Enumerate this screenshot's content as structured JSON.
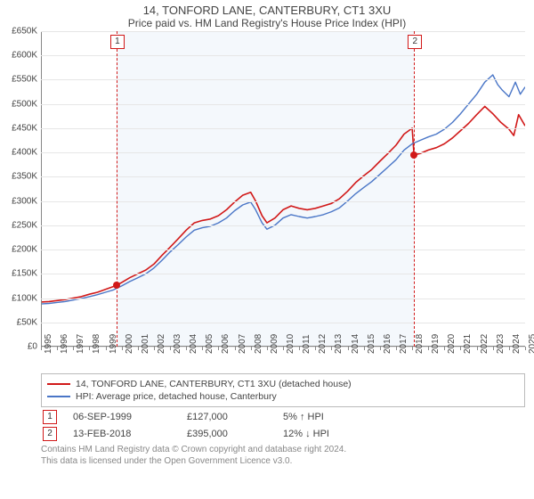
{
  "title": "14, TONFORD LANE, CANTERBURY, CT1 3XU",
  "subtitle": "Price paid vs. HM Land Registry's House Price Index (HPI)",
  "chart": {
    "type": "line",
    "background_color": "#ffffff",
    "shade_color": "#f4f8fc",
    "grid_color": "#e6e6e6",
    "axis_color": "#888888",
    "label_fontsize": 10,
    "x_min": 1995,
    "x_max": 2025,
    "x_ticks": [
      1995,
      1996,
      1997,
      1998,
      1999,
      2000,
      2001,
      2002,
      2003,
      2004,
      2005,
      2006,
      2007,
      2008,
      2009,
      2010,
      2011,
      2012,
      2013,
      2014,
      2015,
      2016,
      2017,
      2018,
      2019,
      2020,
      2021,
      2022,
      2023,
      2024,
      2025
    ],
    "y_min": 0,
    "y_max": 650000,
    "y_step": 50000,
    "y_labels": [
      "£0",
      "£50K",
      "£100K",
      "£150K",
      "£200K",
      "£250K",
      "£300K",
      "£350K",
      "£400K",
      "£450K",
      "£500K",
      "£550K",
      "£600K",
      "£650K"
    ],
    "shade_from_x": 1999.68,
    "shade_to_x": 2018.12,
    "series": [
      {
        "name": "property",
        "label": "14, TONFORD LANE, CANTERBURY, CT1 3XU (detached house)",
        "color": "#d11919",
        "line_width": 1.6,
        "points": [
          [
            1995.0,
            92000
          ],
          [
            1995.5,
            93000
          ],
          [
            1996.0,
            95000
          ],
          [
            1996.5,
            97000
          ],
          [
            1997.0,
            100000
          ],
          [
            1997.5,
            103000
          ],
          [
            1998.0,
            108000
          ],
          [
            1998.5,
            112000
          ],
          [
            1999.0,
            118000
          ],
          [
            1999.5,
            124000
          ],
          [
            2000.0,
            132000
          ],
          [
            2000.5,
            142000
          ],
          [
            2001.0,
            150000
          ],
          [
            2001.5,
            158000
          ],
          [
            2002.0,
            170000
          ],
          [
            2002.5,
            188000
          ],
          [
            2003.0,
            205000
          ],
          [
            2003.5,
            222000
          ],
          [
            2004.0,
            240000
          ],
          [
            2004.5,
            255000
          ],
          [
            2005.0,
            260000
          ],
          [
            2005.5,
            263000
          ],
          [
            2006.0,
            270000
          ],
          [
            2006.5,
            282000
          ],
          [
            2007.0,
            298000
          ],
          [
            2007.5,
            312000
          ],
          [
            2008.0,
            318000
          ],
          [
            2008.3,
            300000
          ],
          [
            2008.7,
            270000
          ],
          [
            2009.0,
            255000
          ],
          [
            2009.5,
            265000
          ],
          [
            2010.0,
            282000
          ],
          [
            2010.5,
            290000
          ],
          [
            2011.0,
            285000
          ],
          [
            2011.5,
            282000
          ],
          [
            2012.0,
            285000
          ],
          [
            2012.5,
            290000
          ],
          [
            2013.0,
            295000
          ],
          [
            2013.5,
            305000
          ],
          [
            2014.0,
            320000
          ],
          [
            2014.5,
            338000
          ],
          [
            2015.0,
            352000
          ],
          [
            2015.5,
            365000
          ],
          [
            2016.0,
            382000
          ],
          [
            2016.5,
            398000
          ],
          [
            2017.0,
            415000
          ],
          [
            2017.5,
            438000
          ],
          [
            2018.0,
            450000
          ],
          [
            2018.12,
            395000
          ],
          [
            2018.5,
            398000
          ],
          [
            2019.0,
            405000
          ],
          [
            2019.5,
            410000
          ],
          [
            2020.0,
            418000
          ],
          [
            2020.5,
            430000
          ],
          [
            2021.0,
            445000
          ],
          [
            2021.5,
            460000
          ],
          [
            2022.0,
            478000
          ],
          [
            2022.5,
            495000
          ],
          [
            2023.0,
            480000
          ],
          [
            2023.5,
            462000
          ],
          [
            2024.0,
            448000
          ],
          [
            2024.3,
            435000
          ],
          [
            2024.6,
            478000
          ],
          [
            2025.0,
            455000
          ]
        ]
      },
      {
        "name": "hpi",
        "label": "HPI: Average price, detached house, Canterbury",
        "color": "#4a76c7",
        "line_width": 1.4,
        "points": [
          [
            1995.0,
            88000
          ],
          [
            1995.5,
            89000
          ],
          [
            1996.0,
            91000
          ],
          [
            1996.5,
            93000
          ],
          [
            1997.0,
            96000
          ],
          [
            1997.5,
            99000
          ],
          [
            1998.0,
            103000
          ],
          [
            1998.5,
            107000
          ],
          [
            1999.0,
            112000
          ],
          [
            1999.5,
            117000
          ],
          [
            2000.0,
            125000
          ],
          [
            2000.5,
            134000
          ],
          [
            2001.0,
            142000
          ],
          [
            2001.5,
            150000
          ],
          [
            2002.0,
            162000
          ],
          [
            2002.5,
            178000
          ],
          [
            2003.0,
            195000
          ],
          [
            2003.5,
            210000
          ],
          [
            2004.0,
            226000
          ],
          [
            2004.5,
            240000
          ],
          [
            2005.0,
            245000
          ],
          [
            2005.5,
            248000
          ],
          [
            2006.0,
            255000
          ],
          [
            2006.5,
            265000
          ],
          [
            2007.0,
            280000
          ],
          [
            2007.5,
            292000
          ],
          [
            2008.0,
            298000
          ],
          [
            2008.3,
            282000
          ],
          [
            2008.7,
            255000
          ],
          [
            2009.0,
            242000
          ],
          [
            2009.5,
            250000
          ],
          [
            2010.0,
            265000
          ],
          [
            2010.5,
            272000
          ],
          [
            2011.0,
            268000
          ],
          [
            2011.5,
            265000
          ],
          [
            2012.0,
            268000
          ],
          [
            2012.5,
            272000
          ],
          [
            2013.0,
            278000
          ],
          [
            2013.5,
            286000
          ],
          [
            2014.0,
            300000
          ],
          [
            2014.5,
            315000
          ],
          [
            2015.0,
            328000
          ],
          [
            2015.5,
            340000
          ],
          [
            2016.0,
            355000
          ],
          [
            2016.5,
            370000
          ],
          [
            2017.0,
            385000
          ],
          [
            2017.5,
            405000
          ],
          [
            2018.0,
            418000
          ],
          [
            2018.5,
            425000
          ],
          [
            2019.0,
            432000
          ],
          [
            2019.5,
            438000
          ],
          [
            2020.0,
            448000
          ],
          [
            2020.5,
            462000
          ],
          [
            2021.0,
            480000
          ],
          [
            2021.5,
            500000
          ],
          [
            2022.0,
            520000
          ],
          [
            2022.5,
            545000
          ],
          [
            2023.0,
            560000
          ],
          [
            2023.3,
            540000
          ],
          [
            2023.6,
            528000
          ],
          [
            2024.0,
            515000
          ],
          [
            2024.4,
            545000
          ],
          [
            2024.7,
            520000
          ],
          [
            2025.0,
            535000
          ]
        ]
      }
    ],
    "event_markers": [
      {
        "n": "1",
        "x": 1999.68,
        "y": 127000,
        "color": "#d11919"
      },
      {
        "n": "2",
        "x": 2018.12,
        "y": 395000,
        "color": "#d11919"
      }
    ]
  },
  "legend": {
    "border_color": "#bbbbbb",
    "rows": [
      {
        "color": "#d11919",
        "label": "14, TONFORD LANE, CANTERBURY, CT1 3XU (detached house)"
      },
      {
        "color": "#4a76c7",
        "label": "HPI: Average price, detached house, Canterbury"
      }
    ]
  },
  "annotations": [
    {
      "n": "1",
      "color": "#d11919",
      "date": "06-SEP-1999",
      "price": "£127,000",
      "pct": "5%",
      "dir": "↑",
      "dir_label": "HPI"
    },
    {
      "n": "2",
      "color": "#d11919",
      "date": "13-FEB-2018",
      "price": "£395,000",
      "pct": "12%",
      "dir": "↓",
      "dir_label": "HPI"
    }
  ],
  "footer": {
    "line1": "Contains HM Land Registry data © Crown copyright and database right 2024.",
    "line2": "This data is licensed under the Open Government Licence v3.0."
  }
}
